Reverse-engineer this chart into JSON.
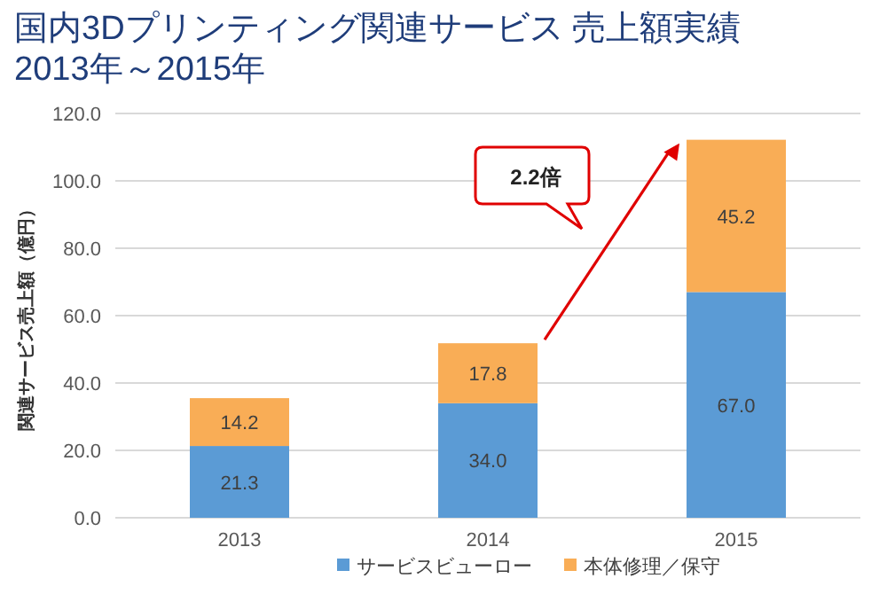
{
  "chart_data": {
    "type": "bar",
    "title": "国内3Dプリンティング関連サービス 売上額実績",
    "subtitle": "2013年～2015年",
    "ylabel": "関連サービス売上額（億円）",
    "categories": [
      "2013",
      "2014",
      "2015"
    ],
    "stacked": true,
    "grid": "y",
    "legend": "bottom",
    "series": [
      {
        "name": "サービスビューロー",
        "color": "#5b9bd5",
        "values": [
          21.3,
          34.0,
          67.0
        ],
        "value_labels": [
          "21.3",
          "34.0",
          "67.0"
        ]
      },
      {
        "name": "本体修理／保守",
        "color": "#f9ad56",
        "values": [
          14.2,
          17.8,
          45.2
        ],
        "value_labels": [
          "14.2",
          "17.8",
          "45.2"
        ]
      }
    ],
    "ylim": [
      0,
      120
    ],
    "yticks": [
      {
        "value": 0,
        "label": "0.0"
      },
      {
        "value": 20,
        "label": "20.0"
      },
      {
        "value": 40,
        "label": "40.0"
      },
      {
        "value": 60,
        "label": "60.0"
      },
      {
        "value": 80,
        "label": "80.0"
      },
      {
        "value": 100,
        "label": "100.0"
      },
      {
        "value": 120,
        "label": "120.0"
      }
    ],
    "annotations": [
      "2.2倍"
    ]
  }
}
